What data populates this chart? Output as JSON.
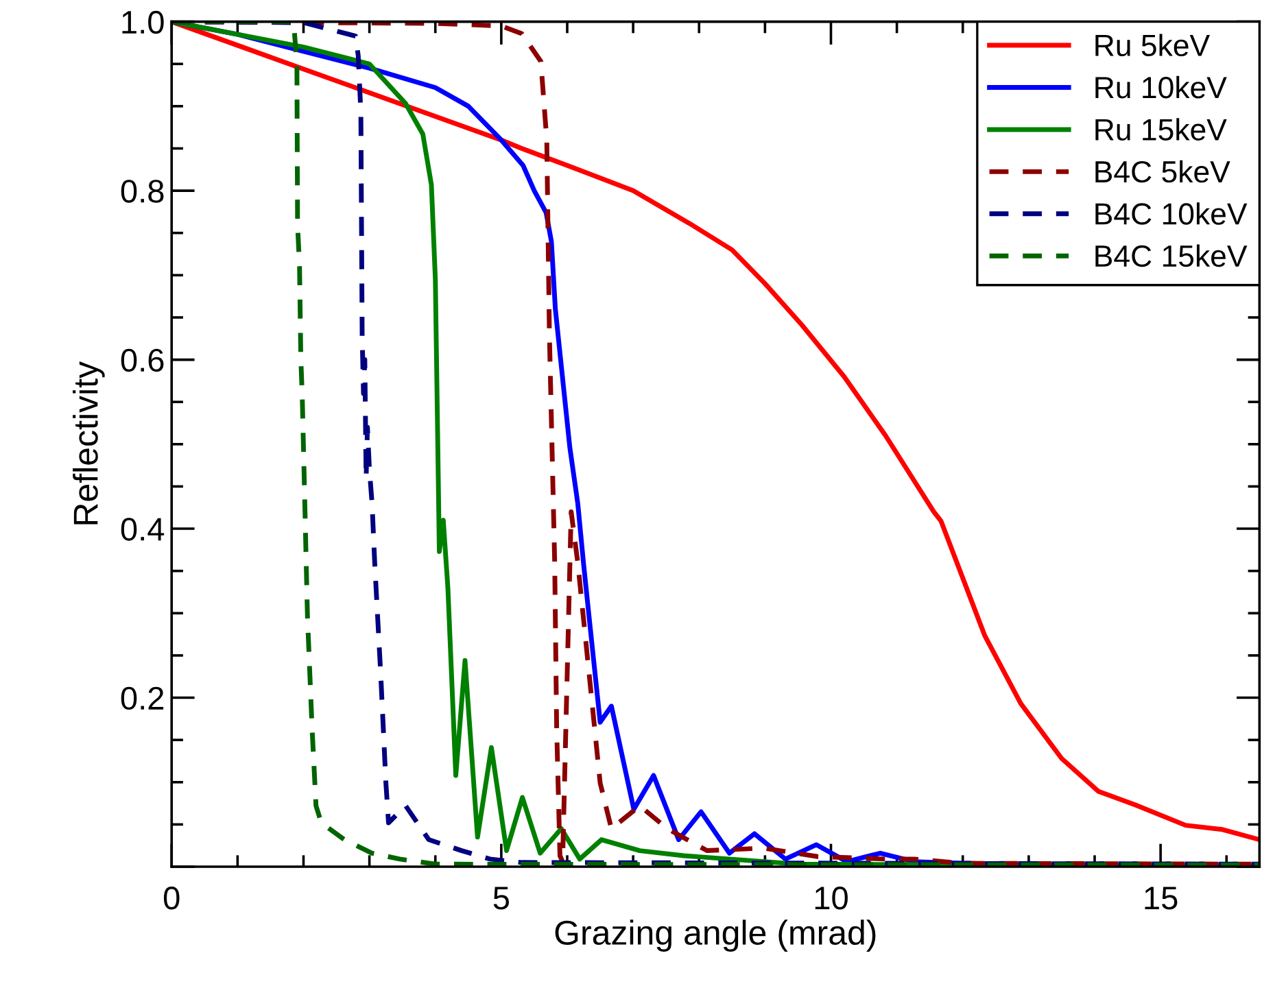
{
  "chart_data": {
    "type": "line",
    "xlabel": "Grazing angle (mrad)",
    "ylabel": "Reflectivity",
    "xlim": [
      0,
      16.5
    ],
    "ylim": [
      0,
      1.0
    ],
    "xticks": [
      0,
      5,
      10,
      15
    ],
    "yticks": [
      {
        "value": 0,
        "label": null
      },
      0.2,
      0.4,
      0.6,
      0.8,
      {
        "value": 1,
        "label": "1.0"
      }
    ],
    "grid": false,
    "legend": "top right",
    "marker": "none",
    "series": [
      {
        "name": "Ru 5keV",
        "color": "#ff0000",
        "line_style": "solid",
        "x": [
          0,
          1,
          2,
          3,
          4,
          5,
          5.31,
          6,
          7,
          7.86,
          8.5,
          9,
          9.56,
          10.2,
          10.83,
          11.56,
          11.67,
          12.33,
          12.88,
          13.5,
          14.06,
          14.62,
          15.38,
          15.94,
          16.5
        ],
        "values": [
          1.0,
          0.972,
          0.944,
          0.916,
          0.888,
          0.86,
          0.85,
          0.83,
          0.8,
          0.761,
          0.73,
          0.69,
          0.641,
          0.58,
          0.51,
          0.42,
          0.409,
          0.274,
          0.193,
          0.128,
          0.089,
          0.073,
          0.049,
          0.044,
          0.032
        ]
      },
      {
        "name": "Ru 10keV",
        "color": "#0000ff",
        "line_style": "solid",
        "x": [
          0,
          1,
          2,
          3,
          4,
          4.5,
          5,
          5.33,
          5.5,
          5.68,
          5.76,
          5.82,
          6.04,
          6.16,
          6.25,
          6.33,
          6.5,
          6.67,
          7.01,
          7.31,
          7.69,
          8.03,
          8.46,
          8.84,
          9.31,
          9.78,
          10.24,
          10.75,
          11.26,
          12,
          13,
          16.5
        ],
        "values": [
          1.0,
          0.985,
          0.965,
          0.945,
          0.922,
          0.9,
          0.86,
          0.83,
          0.8,
          0.774,
          0.74,
          0.66,
          0.496,
          0.43,
          0.357,
          0.297,
          0.171,
          0.19,
          0.068,
          0.108,
          0.032,
          0.065,
          0.016,
          0.039,
          0.009,
          0.026,
          0.006,
          0.016,
          0.006,
          0.004,
          0.002,
          0.001
        ]
      },
      {
        "name": "Ru 15keV",
        "color": "#008000",
        "line_style": "solid",
        "x": [
          0,
          1,
          2,
          3,
          3.55,
          3.81,
          3.94,
          4.0,
          4.05,
          4.06,
          4.12,
          4.19,
          4.31,
          4.45,
          4.64,
          4.85,
          5.08,
          5.32,
          5.59,
          5.91,
          6.19,
          6.52,
          7.1,
          7.77,
          8.46,
          9.5,
          16.5
        ],
        "values": [
          1.0,
          0.985,
          0.97,
          0.95,
          0.903,
          0.867,
          0.807,
          0.695,
          0.43,
          0.373,
          0.41,
          0.33,
          0.108,
          0.244,
          0.035,
          0.141,
          0.019,
          0.082,
          0.016,
          0.045,
          0.009,
          0.032,
          0.019,
          0.013,
          0.009,
          0.003,
          0.001
        ]
      },
      {
        "name": "B4C 5keV",
        "color": "#8b0000",
        "line_style": "dashed",
        "x": [
          0,
          4,
          5,
          5.31,
          5.6,
          5.69,
          5.73,
          5.81,
          5.84,
          5.89,
          5.93,
          6.06,
          6.16,
          6.33,
          6.5,
          6.67,
          7.1,
          7.52,
          8.12,
          8.97,
          9.8,
          10.83,
          11.26,
          12,
          16.5
        ],
        "values": [
          1.0,
          0.998,
          0.995,
          0.986,
          0.953,
          0.86,
          0.63,
          0.36,
          0.164,
          0.013,
          0.006,
          0.42,
          0.36,
          0.23,
          0.099,
          0.045,
          0.072,
          0.045,
          0.019,
          0.022,
          0.012,
          0.009,
          0.009,
          0.004,
          0.003
        ]
      },
      {
        "name": "B4C 10keV",
        "color": "#000080",
        "line_style": "dashed",
        "x": [
          0,
          2,
          2.79,
          2.83,
          2.87,
          2.89,
          2.91,
          2.93,
          2.95,
          2.97,
          3.0,
          3.04,
          3.08,
          3.17,
          3.25,
          3.29,
          3.55,
          3.9,
          4.4,
          4.83,
          5.3,
          16.5
        ],
        "values": [
          1.0,
          0.999,
          0.983,
          0.96,
          0.893,
          0.628,
          0.56,
          0.6,
          0.46,
          0.52,
          0.47,
          0.43,
          0.36,
          0.23,
          0.099,
          0.052,
          0.072,
          0.032,
          0.019,
          0.009,
          0.005,
          0.003
        ]
      },
      {
        "name": "B4C 15keV",
        "color": "#006400",
        "line_style": "dashed",
        "x": [
          0,
          1,
          1.85,
          1.9,
          1.91,
          1.94,
          1.95,
          1.96,
          1.98,
          2.02,
          2.06,
          2.13,
          2.19,
          2.27,
          2.62,
          3.04,
          3.46,
          4,
          16.5
        ],
        "values": [
          1.0,
          1.0,
          1.0,
          0.95,
          0.76,
          0.71,
          0.655,
          0.6,
          0.56,
          0.43,
          0.297,
          0.164,
          0.072,
          0.052,
          0.032,
          0.016,
          0.009,
          0.003,
          0.002
        ]
      }
    ]
  }
}
